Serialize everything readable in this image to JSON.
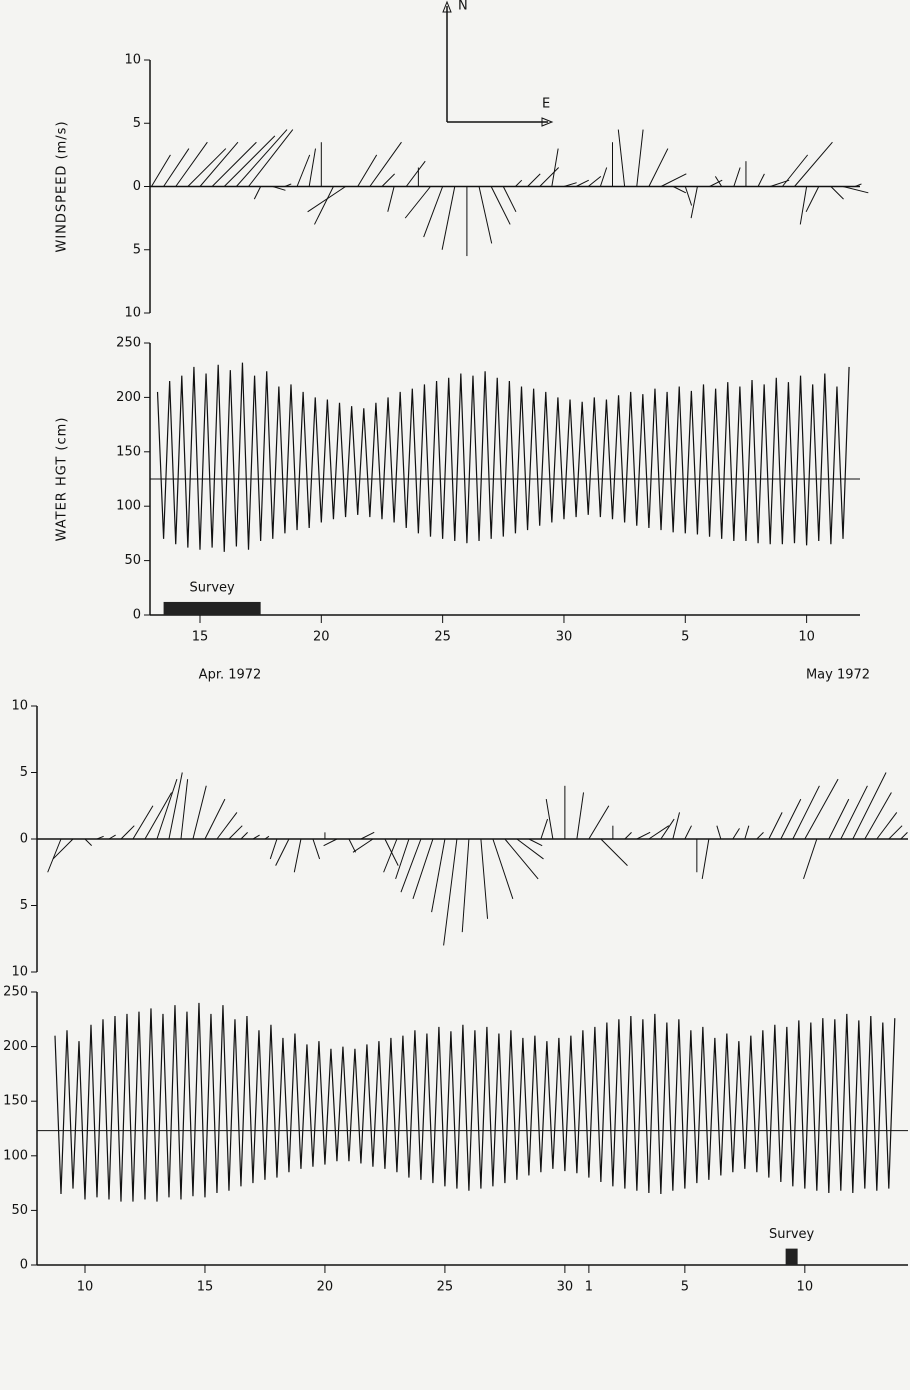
{
  "chart_data": [
    {
      "type": "stick",
      "ylabel": "WINDSPEED (m/s)",
      "compass": {
        "north": "N",
        "east": "E"
      },
      "ylim": [
        -10,
        10
      ],
      "yticks": [
        {
          "value": -10,
          "label": "10"
        },
        {
          "value": -5,
          "label": "5"
        },
        0,
        5,
        10
      ],
      "xlim": [
        12.94,
        42.2
      ],
      "x": [
        13,
        13.5,
        14,
        14.5,
        15,
        15.5,
        16,
        16.5,
        17,
        17.5,
        18,
        18.5,
        19,
        19.5,
        20,
        20.5,
        21,
        21.5,
        22,
        22.5,
        23,
        23.5,
        24,
        24.5,
        25,
        25.5,
        26,
        26.5,
        27,
        27.5,
        28,
        28.5,
        29,
        29.5,
        30,
        30.5,
        31,
        31.5,
        32,
        32.5,
        33,
        33.5,
        34,
        34.5,
        35,
        35.5,
        36,
        36.5,
        37,
        37.5,
        38,
        38.5,
        39,
        39.5,
        40,
        40.5,
        41,
        41.5,
        42
      ],
      "east": [
        1.5,
        2,
        2.5,
        3,
        3,
        3.5,
        4,
        4,
        3.5,
        -0.5,
        1,
        0.5,
        1,
        0.5,
        0,
        -1.5,
        -3,
        1.5,
        2.5,
        1,
        -0.5,
        1.5,
        0,
        -2,
        -1.5,
        -1,
        0,
        1,
        1.5,
        1,
        0.5,
        1,
        1.5,
        0.5,
        1,
        1,
        1,
        0.5,
        0,
        -0.5,
        0.5,
        1.5,
        2,
        1,
        0.5,
        -0.5,
        1,
        -0.5,
        0.5,
        0,
        0.5,
        1.5,
        2,
        3,
        -0.5,
        -1,
        1,
        2,
        0.5
      ],
      "north": [
        2.5,
        3,
        3.5,
        3,
        3.5,
        3.5,
        4,
        4.5,
        4.5,
        -1,
        -0.3,
        0.2,
        2.5,
        3,
        3.5,
        -3,
        -2,
        2.5,
        3.5,
        1,
        -2,
        2,
        1.5,
        -2.5,
        -4,
        -5,
        -5.5,
        -4.5,
        -3,
        -2,
        0.5,
        1,
        1.5,
        3,
        0.3,
        0.5,
        0.8,
        1.5,
        3.5,
        4.5,
        4.5,
        3,
        1,
        -0.5,
        -1.5,
        -2.5,
        0.5,
        0.8,
        1.5,
        2,
        1,
        0.5,
        2.5,
        3.5,
        -3,
        -2,
        -1,
        -0.5,
        0.2
      ]
    },
    {
      "type": "line",
      "ylabel": "WATER HGT (cm)",
      "ylim": [
        0,
        250
      ],
      "yticks": [
        0,
        50,
        100,
        150,
        200,
        250
      ],
      "xlim": [
        12.94,
        42.2
      ],
      "xticks": [
        15,
        20,
        25,
        30,
        {
          "value": 35,
          "label": "5"
        },
        {
          "value": 40,
          "label": "10"
        }
      ],
      "xlabels": [
        "Apr. 1972",
        "May 1972"
      ],
      "mean_line": 125,
      "survey": {
        "label": "Survey",
        "start": 13.5,
        "end": 17.5,
        "height": 12
      },
      "x": [
        13.25,
        13.5,
        13.75,
        14,
        14.25,
        14.5,
        14.75,
        15,
        15.25,
        15.5,
        15.75,
        16,
        16.25,
        16.5,
        16.75,
        17,
        17.25,
        17.5,
        17.75,
        18,
        18.25,
        18.5,
        18.75,
        19,
        19.25,
        19.5,
        19.75,
        20,
        20.25,
        20.5,
        20.75,
        21,
        21.25,
        21.5,
        21.75,
        22,
        22.25,
        22.5,
        22.75,
        23,
        23.25,
        23.5,
        23.75,
        24,
        24.25,
        24.5,
        24.75,
        25,
        25.25,
        25.5,
        25.75,
        26,
        26.25,
        26.5,
        26.75,
        27,
        27.25,
        27.5,
        27.75,
        28,
        28.25,
        28.5,
        28.75,
        29,
        29.25,
        29.5,
        29.75,
        30,
        30.25,
        30.5,
        30.75,
        31,
        31.25,
        31.5,
        31.75,
        32,
        32.25,
        32.5,
        32.75,
        33,
        33.25,
        33.5,
        33.75,
        34,
        34.25,
        34.5,
        34.75,
        35,
        35.25,
        35.5,
        35.75,
        36,
        36.25,
        36.5,
        36.75,
        37,
        37.25,
        37.5,
        37.75,
        38,
        38.25,
        38.5,
        38.75,
        39,
        39.25,
        39.5,
        39.75,
        40,
        40.25,
        40.5,
        40.75,
        41,
        41.25,
        41.5,
        41.75
      ],
      "values": [
        205,
        70,
        215,
        65,
        220,
        62,
        228,
        60,
        222,
        62,
        230,
        58,
        225,
        63,
        232,
        60,
        220,
        68,
        224,
        70,
        210,
        75,
        212,
        78,
        205,
        80,
        200,
        85,
        198,
        88,
        195,
        90,
        192,
        92,
        190,
        90,
        195,
        88,
        200,
        85,
        205,
        80,
        208,
        75,
        212,
        72,
        215,
        70,
        218,
        68,
        222,
        66,
        220,
        68,
        224,
        70,
        218,
        72,
        215,
        75,
        210,
        78,
        208,
        82,
        205,
        85,
        200,
        88,
        198,
        90,
        196,
        92,
        200,
        90,
        198,
        88,
        202,
        85,
        205,
        82,
        203,
        80,
        208,
        78,
        205,
        76,
        210,
        75,
        206,
        74,
        212,
        72,
        208,
        70,
        214,
        68,
        210,
        68,
        216,
        66,
        212,
        65,
        218,
        65,
        214,
        66,
        220,
        64,
        212,
        68,
        222,
        65,
        210,
        70,
        228
      ]
    },
    {
      "type": "stick",
      "ylim": [
        -10,
        10
      ],
      "yticks": [
        {
          "value": -10,
          "label": "10"
        },
        {
          "value": -5,
          "label": "5"
        },
        0,
        5,
        10
      ],
      "xlim": [
        8,
        44.3
      ],
      "x": [
        9,
        9.5,
        10,
        10.5,
        11,
        11.5,
        12,
        12.5,
        13,
        13.5,
        14,
        14.5,
        15,
        15.5,
        16,
        16.5,
        17,
        17.5,
        18,
        18.5,
        19,
        19.5,
        20,
        20.5,
        21,
        21.5,
        22,
        22.5,
        23,
        23.5,
        24,
        24.5,
        25,
        25.5,
        26,
        26.5,
        27,
        27.5,
        28,
        28.5,
        29,
        29.5,
        30,
        30.5,
        31,
        31.5,
        32,
        32.5,
        33,
        33.5,
        34,
        34.5,
        35,
        35.5,
        36,
        36.5,
        37,
        37.5,
        38,
        38.5,
        39,
        39.5,
        40,
        40.5,
        41,
        41.5,
        42,
        42.5,
        43,
        43.5,
        44
      ],
      "east": [
        -1,
        -1.5,
        0.5,
        0.5,
        0.5,
        1,
        1.5,
        2,
        1.5,
        1,
        0.5,
        1,
        1.5,
        1.5,
        1,
        0.5,
        0.5,
        0.3,
        -0.5,
        -1,
        -0.5,
        0.5,
        0,
        -1,
        0.5,
        1,
        -1.5,
        1,
        -1,
        -1,
        -1.5,
        -1.5,
        -1,
        -1,
        -0.5,
        0.5,
        1.5,
        2.5,
        2,
        1,
        0.5,
        -0.5,
        0,
        0.5,
        1.5,
        2,
        0,
        0.5,
        1,
        1.5,
        1,
        0.5,
        0.5,
        0,
        -0.5,
        -0.3,
        0.5,
        0.3,
        0.5,
        1,
        1.5,
        2,
        2.5,
        -1,
        1.5,
        2,
        2.5,
        2,
        1.5,
        1,
        0.5
      ],
      "north": [
        -2.5,
        -1.5,
        -0.5,
        0.2,
        0.3,
        1,
        2.5,
        3.5,
        4.5,
        5,
        4.5,
        4,
        3,
        2,
        1,
        0.5,
        0.3,
        0.2,
        -1.5,
        -2,
        -2.5,
        -1.5,
        0.5,
        -0.5,
        -1,
        0.5,
        -1,
        -2,
        -2.5,
        -3,
        -4,
        -4.5,
        -5.5,
        -8,
        -7,
        -6,
        -4.5,
        -3,
        -1.5,
        -0.5,
        1.5,
        3,
        4,
        3.5,
        2.5,
        -2,
        1,
        0.5,
        0.5,
        1,
        1.5,
        2,
        1,
        -2.5,
        -3,
        1,
        0.8,
        1,
        0.5,
        2,
        3,
        4,
        4.5,
        -3,
        3,
        4,
        5,
        3.5,
        2,
        1,
        0.5
      ]
    },
    {
      "type": "line",
      "ylim": [
        0,
        250
      ],
      "yticks": [
        0,
        50,
        100,
        150,
        200,
        250
      ],
      "xlim": [
        8,
        44.3
      ],
      "xticks": [
        10,
        15,
        20,
        25,
        30,
        {
          "value": 31,
          "label": "1"
        },
        {
          "value": 35,
          "label": "5"
        },
        {
          "value": 40,
          "label": "10"
        }
      ],
      "mean_line": 123,
      "survey": {
        "label": "Survey",
        "start": 39.2,
        "end": 39.7,
        "height": 15
      },
      "x": [
        8.75,
        9,
        9.25,
        9.5,
        9.75,
        10,
        10.25,
        10.5,
        10.75,
        11,
        11.25,
        11.5,
        11.75,
        12,
        12.25,
        12.5,
        12.75,
        13,
        13.25,
        13.5,
        13.75,
        14,
        14.25,
        14.5,
        14.75,
        15,
        15.25,
        15.5,
        15.75,
        16,
        16.25,
        16.5,
        16.75,
        17,
        17.25,
        17.5,
        17.75,
        18,
        18.25,
        18.5,
        18.75,
        19,
        19.25,
        19.5,
        19.75,
        20,
        20.25,
        20.5,
        20.75,
        21,
        21.25,
        21.5,
        21.75,
        22,
        22.25,
        22.5,
        22.75,
        23,
        23.25,
        23.5,
        23.75,
        24,
        24.25,
        24.5,
        24.75,
        25,
        25.25,
        25.5,
        25.75,
        26,
        26.25,
        26.5,
        26.75,
        27,
        27.25,
        27.5,
        27.75,
        28,
        28.25,
        28.5,
        28.75,
        29,
        29.25,
        29.5,
        29.75,
        30,
        30.25,
        30.5,
        30.75,
        31,
        31.25,
        31.5,
        31.75,
        32,
        32.25,
        32.5,
        32.75,
        33,
        33.25,
        33.5,
        33.75,
        34,
        34.25,
        34.5,
        34.75,
        35,
        35.25,
        35.5,
        35.75,
        36,
        36.25,
        36.5,
        36.75,
        37,
        37.25,
        37.5,
        37.75,
        38,
        38.25,
        38.5,
        38.75,
        39,
        39.25,
        39.5,
        39.75,
        40,
        40.25,
        40.5,
        40.75,
        41,
        41.25,
        41.5,
        41.75,
        42,
        42.25,
        42.5,
        42.75,
        43,
        43.25,
        43.5,
        43.75
      ],
      "values": [
        210,
        65,
        215,
        70,
        205,
        60,
        220,
        62,
        225,
        60,
        228,
        58,
        230,
        58,
        232,
        60,
        235,
        58,
        230,
        62,
        238,
        60,
        232,
        63,
        240,
        62,
        230,
        66,
        238,
        68,
        225,
        72,
        228,
        75,
        215,
        78,
        220,
        80,
        208,
        85,
        212,
        88,
        202,
        90,
        205,
        92,
        198,
        95,
        200,
        95,
        198,
        93,
        202,
        90,
        205,
        88,
        208,
        85,
        210,
        80,
        215,
        78,
        212,
        75,
        218,
        72,
        214,
        70,
        220,
        68,
        215,
        70,
        218,
        72,
        212,
        75,
        215,
        78,
        208,
        82,
        210,
        85,
        205,
        88,
        208,
        86,
        210,
        84,
        215,
        80,
        218,
        76,
        222,
        72,
        225,
        70,
        228,
        68,
        225,
        66,
        230,
        65,
        222,
        68,
        225,
        70,
        215,
        75,
        218,
        78,
        208,
        82,
        212,
        85,
        205,
        88,
        210,
        85,
        215,
        80,
        220,
        76,
        218,
        72,
        224,
        70,
        222,
        68,
        226,
        66,
        225,
        68,
        230,
        66,
        224,
        70,
        228,
        68,
        222,
        70,
        226
      ]
    }
  ]
}
